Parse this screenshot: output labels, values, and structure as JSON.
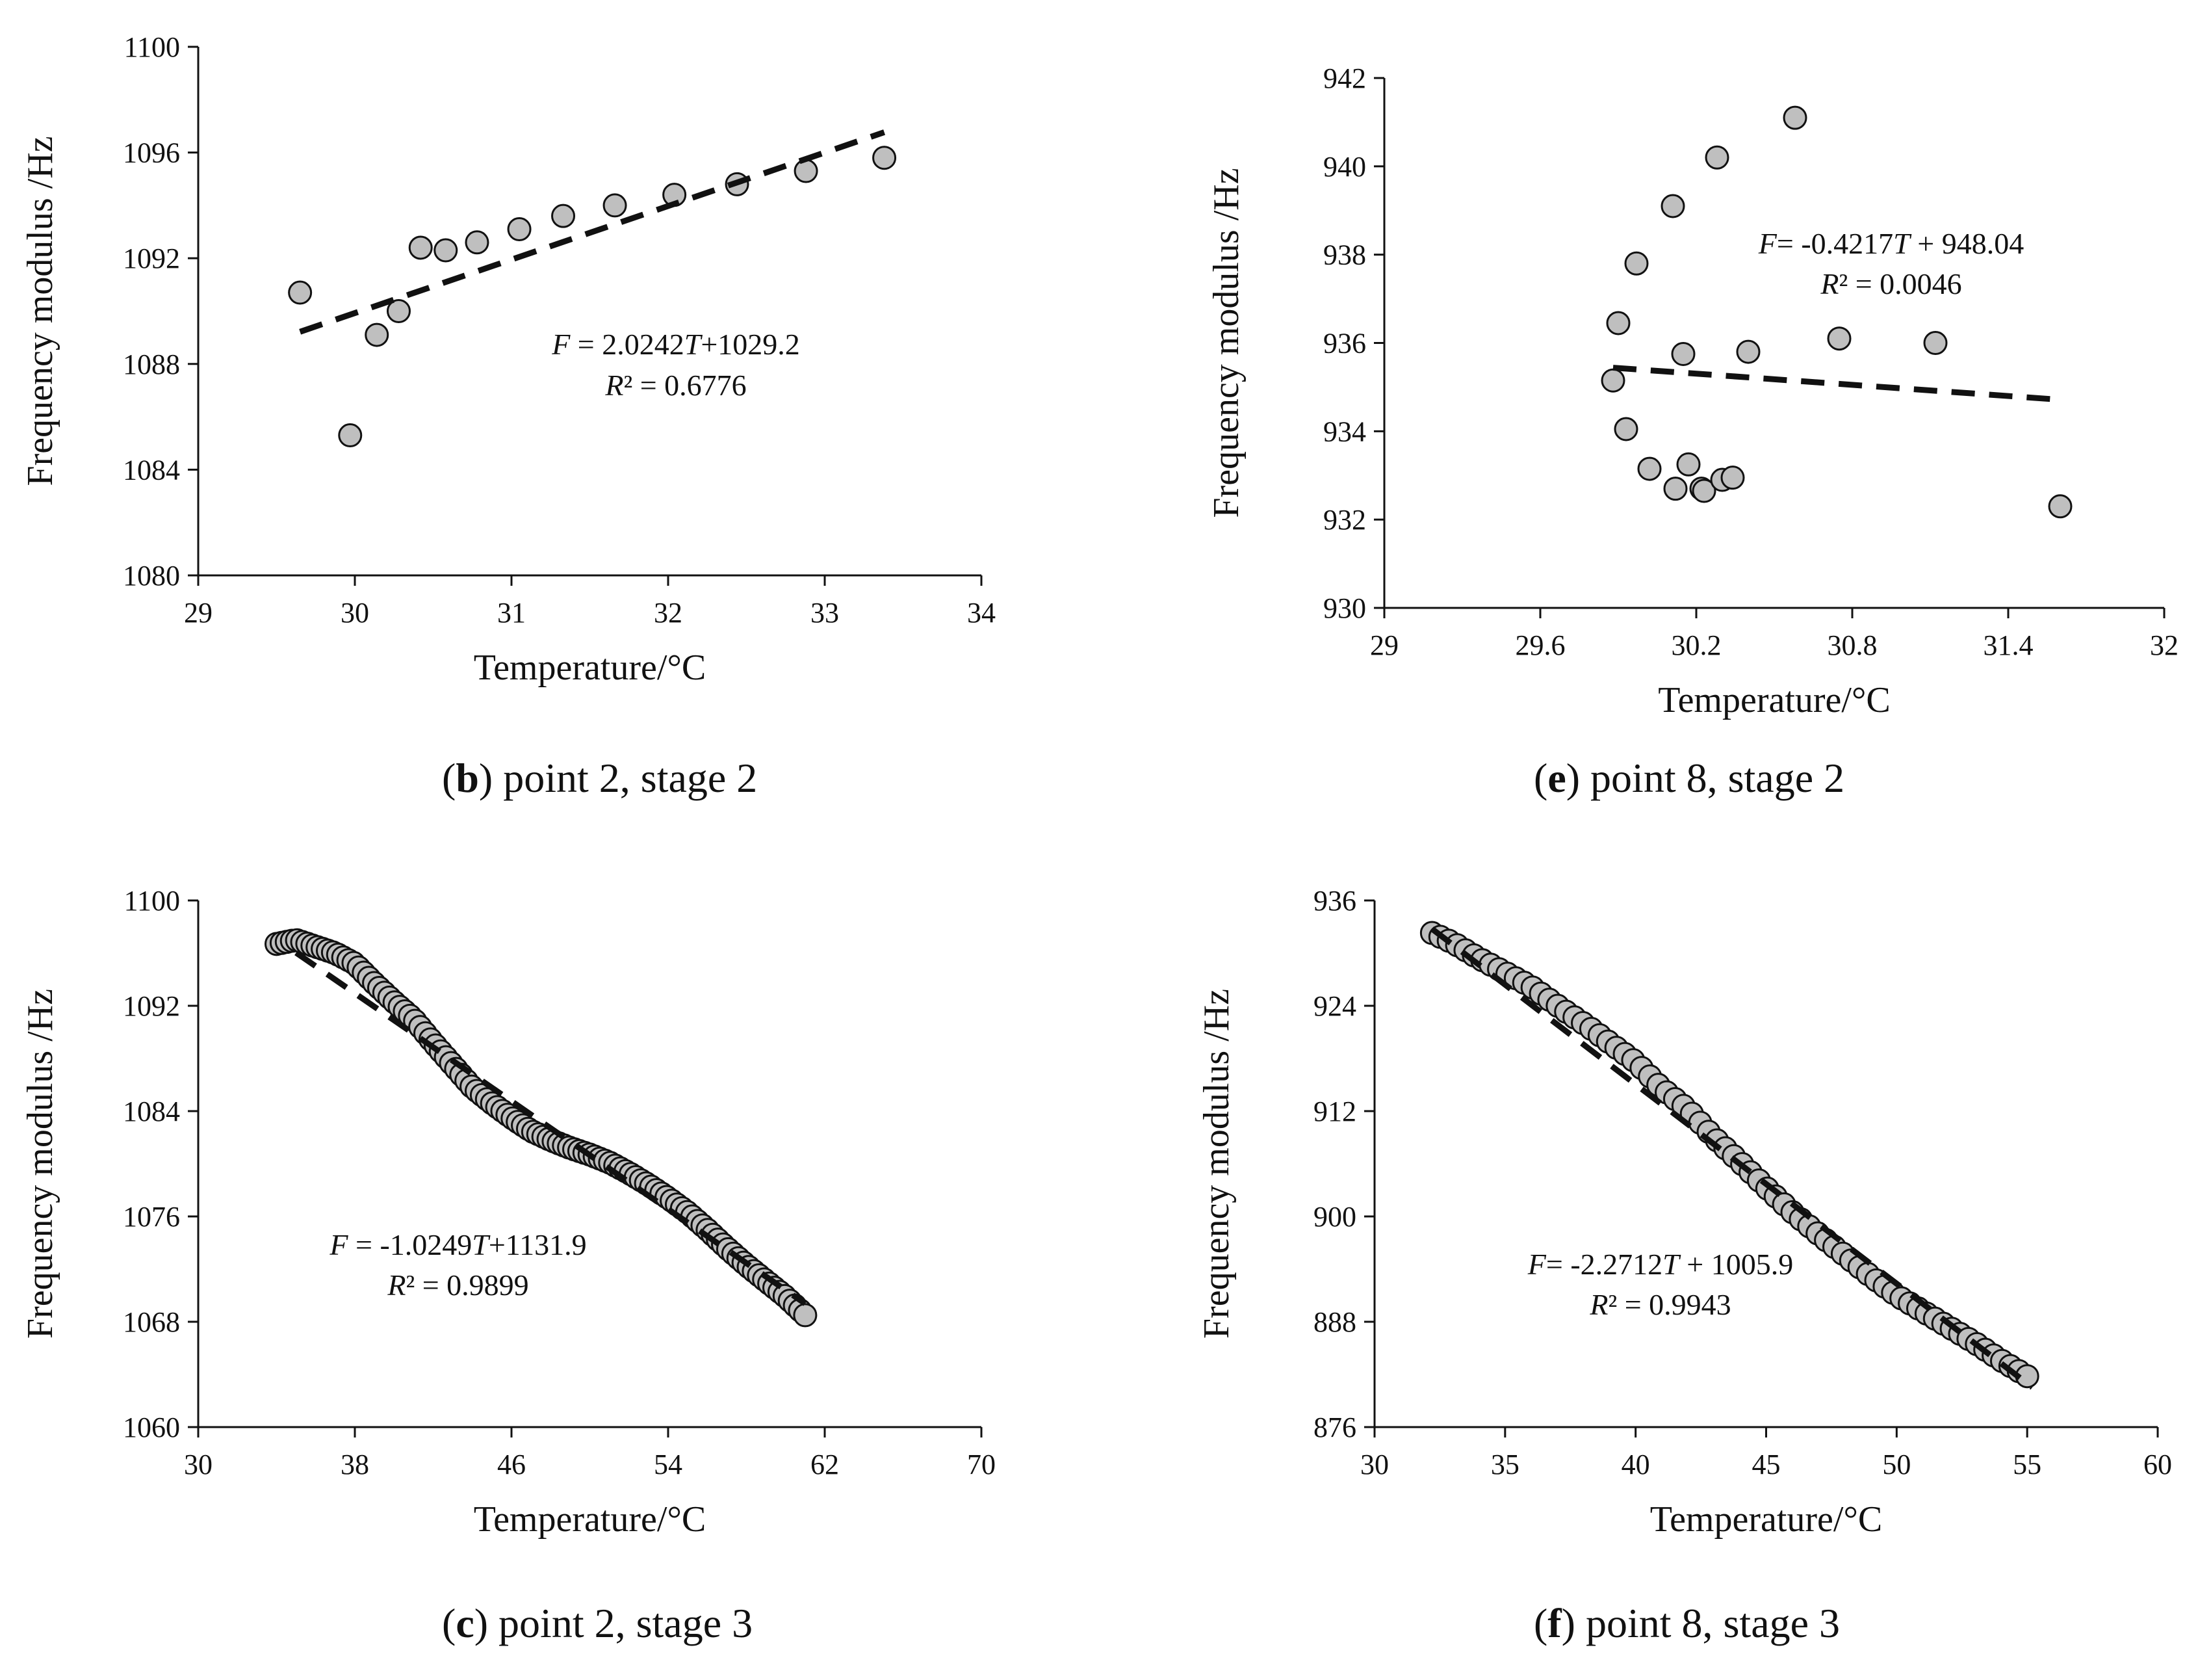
{
  "figure": {
    "captions": [
      {
        "letter": "b",
        "text": " point 2, stage 2"
      },
      {
        "letter": "e",
        "text": " point 8, stage 2"
      },
      {
        "letter": "c",
        "text": " point 2, stage 3"
      },
      {
        "letter": "f",
        "text": " point 8, stage 3"
      }
    ]
  },
  "chart_data": [
    {
      "id": "b",
      "type": "scatter",
      "xlabel": "Temperature/°C",
      "ylabel": "Frequency modulus /Hz",
      "xlim": [
        29,
        34
      ],
      "ylim": [
        1080,
        1100
      ],
      "xticks": [
        "29",
        "30",
        "31",
        "32",
        "33",
        "34"
      ],
      "yticks": [
        "1080",
        "1084",
        "1088",
        "1092",
        "1096",
        "1100"
      ],
      "points": [
        [
          29.65,
          1090.7
        ],
        [
          29.97,
          1085.3
        ],
        [
          30.14,
          1089.1
        ],
        [
          30.28,
          1090.0
        ],
        [
          30.42,
          1092.4
        ],
        [
          30.58,
          1092.3
        ],
        [
          30.78,
          1092.6
        ],
        [
          31.05,
          1093.1
        ],
        [
          31.33,
          1093.6
        ],
        [
          31.66,
          1094.0
        ],
        [
          32.04,
          1094.4
        ],
        [
          32.44,
          1094.8
        ],
        [
          32.88,
          1095.3
        ],
        [
          33.38,
          1095.8
        ]
      ],
      "trendline": {
        "x": [
          29.65,
          33.38
        ]
      },
      "equation": {
        "lhs": "F",
        "text": " = 2.0242",
        "var": "T",
        "rest": "+1029.2"
      },
      "r2": {
        "lhs": "R",
        "text": "² = 0.6776"
      },
      "fit": {
        "slope": 2.0242,
        "intercept": 1029.2
      }
    },
    {
      "id": "e",
      "type": "scatter",
      "xlabel": "Temperature/°C",
      "ylabel": "Frequency modulus /Hz",
      "xlim": [
        29,
        32
      ],
      "ylim": [
        930,
        942
      ],
      "xticks": [
        "29",
        "29.6",
        "30.2",
        "30.8",
        "31.4",
        "32"
      ],
      "yticks": [
        "930",
        "932",
        "934",
        "936",
        "938",
        "940",
        "942"
      ],
      "points": [
        [
          29.88,
          935.15
        ],
        [
          29.9,
          936.45
        ],
        [
          29.93,
          934.05
        ],
        [
          29.97,
          937.8
        ],
        [
          30.02,
          933.15
        ],
        [
          30.11,
          939.1
        ],
        [
          30.12,
          932.7
        ],
        [
          30.15,
          935.75
        ],
        [
          30.17,
          933.25
        ],
        [
          30.22,
          932.7
        ],
        [
          30.23,
          932.65
        ],
        [
          30.28,
          940.2
        ],
        [
          30.3,
          932.9
        ],
        [
          30.34,
          932.95
        ],
        [
          30.4,
          935.8
        ],
        [
          30.58,
          941.1
        ],
        [
          30.75,
          936.1
        ],
        [
          31.12,
          936.0
        ],
        [
          31.6,
          932.3
        ]
      ],
      "trendline": {
        "x": [
          29.88,
          31.6
        ]
      },
      "equation": {
        "lhs": "F",
        "text": "= -0.4217",
        "var": "T",
        "rest": " + 948.04"
      },
      "r2": {
        "lhs": "R",
        "text": "² = 0.0046"
      },
      "fit": {
        "slope": -0.4217,
        "intercept": 948.04
      }
    },
    {
      "id": "c",
      "type": "scatter",
      "xlabel": "Temperature/°C",
      "ylabel": "Frequency modulus /Hz",
      "xlim": [
        30,
        70
      ],
      "ylim": [
        1060,
        1100
      ],
      "xticks": [
        "30",
        "38",
        "46",
        "54",
        "62",
        "70"
      ],
      "yticks": [
        "1060",
        "1068",
        "1076",
        "1084",
        "1092",
        "1100"
      ],
      "curve": [
        [
          34.0,
          1096.7
        ],
        [
          35.0,
          1097.0
        ],
        [
          37.0,
          1096.0
        ],
        [
          38.0,
          1095.2
        ],
        [
          39.0,
          1093.7
        ],
        [
          40.0,
          1092.3
        ],
        [
          41.0,
          1091.0
        ],
        [
          42.0,
          1089.2
        ],
        [
          43.0,
          1087.5
        ],
        [
          44.0,
          1085.8
        ],
        [
          45.0,
          1084.6
        ],
        [
          46.0,
          1083.5
        ],
        [
          47.0,
          1082.5
        ],
        [
          48.0,
          1081.8
        ],
        [
          49.0,
          1081.2
        ],
        [
          50.0,
          1080.7
        ],
        [
          51.0,
          1080.1
        ],
        [
          52.0,
          1079.3
        ],
        [
          53.0,
          1078.4
        ],
        [
          54.0,
          1077.4
        ],
        [
          55.0,
          1076.3
        ],
        [
          56.0,
          1075.0
        ],
        [
          57.0,
          1073.6
        ],
        [
          58.0,
          1072.3
        ],
        [
          59.0,
          1071.1
        ],
        [
          60.0,
          1069.9
        ],
        [
          61.0,
          1068.5
        ]
      ],
      "n_points": 104,
      "trendline": {
        "x": [
          35.0,
          61.0
        ]
      },
      "equation": {
        "lhs": "F",
        "text": " = -1.0249",
        "var": "T",
        "rest": "+1131.9"
      },
      "r2": {
        "lhs": "R",
        "text": "² = 0.9899"
      },
      "fit": {
        "slope": -1.0249,
        "intercept": 1131.9
      }
    },
    {
      "id": "f",
      "type": "scatter",
      "xlabel": "Temperature/°C",
      "ylabel": "Frequency modulus /Hz",
      "xlim": [
        30,
        60
      ],
      "ylim": [
        876,
        936
      ],
      "xticks": [
        "30",
        "35",
        "40",
        "45",
        "50",
        "55",
        "60"
      ],
      "yticks": [
        "876",
        "888",
        "900",
        "912",
        "924",
        "936"
      ],
      "curve": [
        [
          32.2,
          932.3
        ],
        [
          33.0,
          931.2
        ],
        [
          34.0,
          929.4
        ],
        [
          35.0,
          927.8
        ],
        [
          36.0,
          926.2
        ],
        [
          37.2,
          923.6
        ],
        [
          38.2,
          921.6
        ],
        [
          39.0,
          919.8
        ],
        [
          40.0,
          917.6
        ],
        [
          41.0,
          914.6
        ],
        [
          42.0,
          912.2
        ],
        [
          43.0,
          909.0
        ],
        [
          44.0,
          906.2
        ],
        [
          45.0,
          903.3
        ],
        [
          46.0,
          900.5
        ],
        [
          47.0,
          898.0
        ],
        [
          48.0,
          895.6
        ],
        [
          49.0,
          893.2
        ],
        [
          50.0,
          891.0
        ],
        [
          51.0,
          889.2
        ],
        [
          52.0,
          887.4
        ],
        [
          53.0,
          885.6
        ],
        [
          54.0,
          883.6
        ],
        [
          55.0,
          881.8
        ]
      ],
      "n_points": 72,
      "trendline": {
        "x": [
          32.2,
          55.2
        ]
      },
      "equation": {
        "lhs": "F",
        "text": "= -2.2712",
        "var": "T",
        "rest": " + 1005.9"
      },
      "r2": {
        "lhs": "R",
        "text": "² = 0.9943"
      },
      "fit": {
        "slope": -2.2712,
        "intercept": 1005.9
      }
    }
  ]
}
